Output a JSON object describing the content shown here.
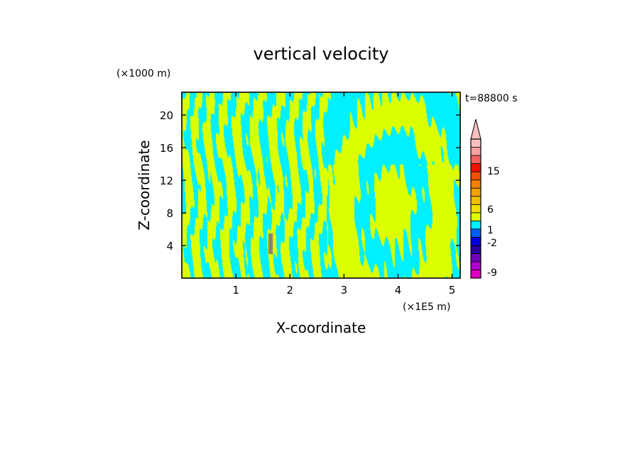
{
  "chart_data": {
    "type": "heatmap",
    "title": "vertical velocity",
    "time_label": "t=88800 s",
    "xlabel": "X-coordinate",
    "ylabel": "Z-coordinate",
    "x_unit": "(×1E5 m)",
    "y_unit": "(×1000 m)",
    "xlim": [
      0,
      5.15
    ],
    "ylim": [
      0,
      22.8
    ],
    "x_ticks": [
      1,
      2,
      3,
      4,
      5
    ],
    "x_tick_labels": [
      "1",
      "2",
      "3",
      "4",
      "5"
    ],
    "y_ticks": [
      4,
      8,
      12,
      16,
      20
    ],
    "y_tick_labels": [
      "4",
      "8",
      "12",
      "16",
      "20"
    ],
    "field_colors": {
      "positive": "#dcff00",
      "negative": "#00f0ff",
      "updraft_core": "#0000ff",
      "downdraft_core": "#ff0000"
    },
    "colorbar": {
      "levels": [
        "-9",
        "-2",
        "1",
        "6",
        "15"
      ],
      "colors": [
        "#e000c0",
        "#b000d0",
        "#7000b8",
        "#2800a0",
        "#0000e0",
        "#0060ff",
        "#00f0ff",
        "#dcff00",
        "#f0e000",
        "#f0c000",
        "#f0a000",
        "#f08000",
        "#f05000",
        "#f01000",
        "#f06060",
        "#f4a0a0",
        "#f8c0c0"
      ]
    }
  }
}
